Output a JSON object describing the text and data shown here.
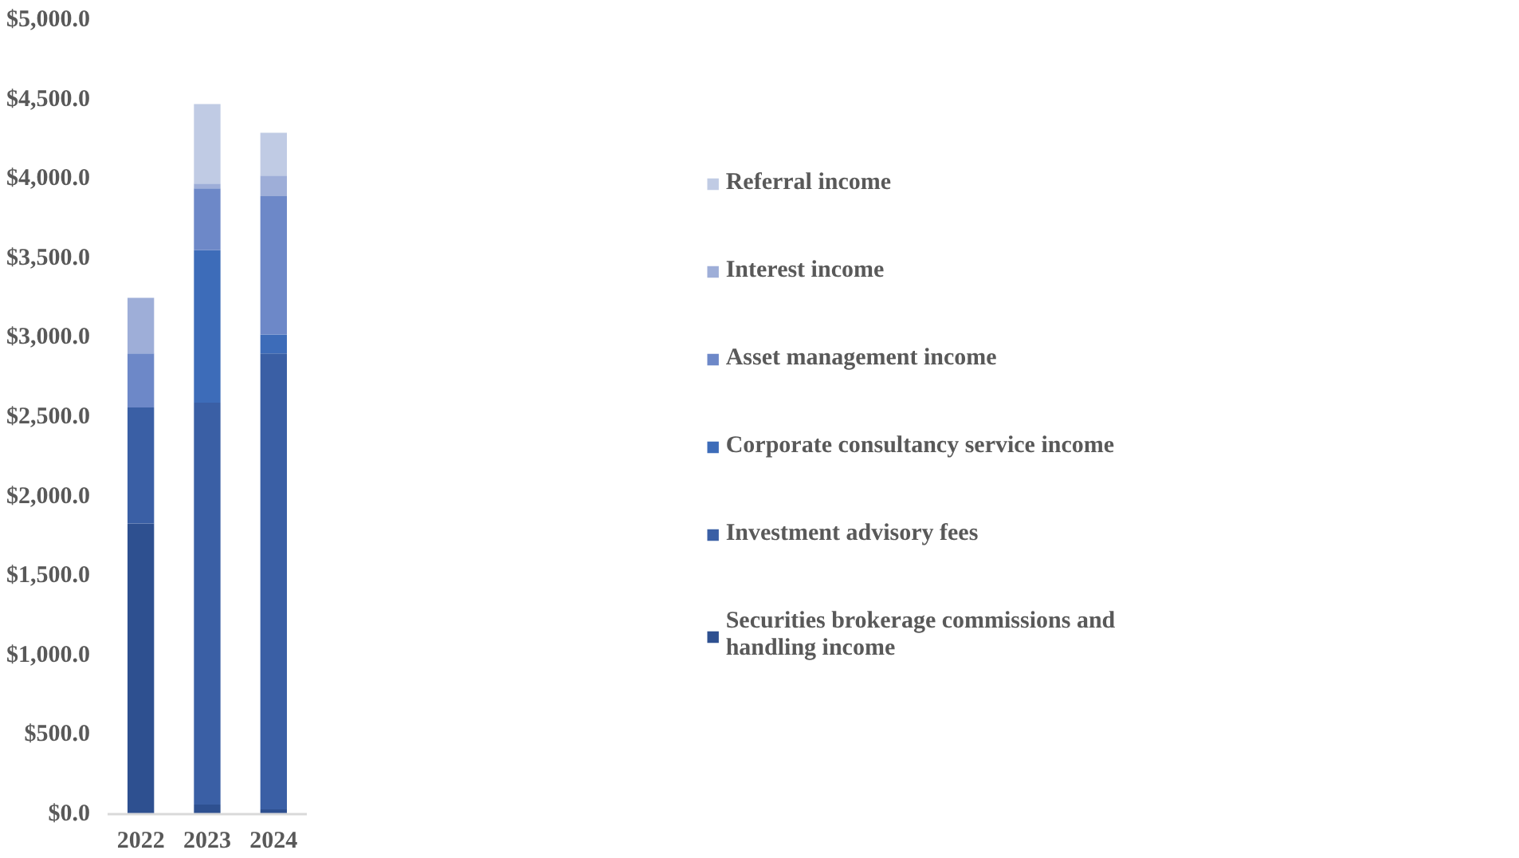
{
  "chart_data": {
    "type": "bar",
    "stacked": true,
    "categories": [
      "2022",
      "2023",
      "2024"
    ],
    "series": [
      {
        "name": "Securities brokerage commissions and handling income",
        "color": "#2e5090",
        "values": [
          1830,
          60,
          30
        ]
      },
      {
        "name": "Investment advisory fees",
        "color": "#3a5fa5",
        "values": [
          730,
          2530,
          2870
        ]
      },
      {
        "name": "Corporate consultancy service income",
        "color": "#3d6cb9",
        "values": [
          0,
          960,
          120
        ]
      },
      {
        "name": "Asset management income",
        "color": "#6d88c8",
        "values": [
          340,
          390,
          870
        ]
      },
      {
        "name": "Interest income",
        "color": "#9eaed8",
        "values": [
          350,
          30,
          130
        ]
      },
      {
        "name": "Referral income",
        "color": "#c0cbe4",
        "values": [
          0,
          500,
          270
        ]
      }
    ],
    "ylim": [
      0,
      5000
    ],
    "yticks": [
      {
        "value": 0,
        "label": "$0.0"
      },
      {
        "value": 500,
        "label": "$500.0"
      },
      {
        "value": 1000,
        "label": "$1,000.0"
      },
      {
        "value": 1500,
        "label": "$1,500.0"
      },
      {
        "value": 2000,
        "label": "$2,000.0"
      },
      {
        "value": 2500,
        "label": "$2,500.0"
      },
      {
        "value": 3000,
        "label": "$3,000.0"
      },
      {
        "value": 3500,
        "label": "$3,500.0"
      },
      {
        "value": 4000,
        "label": "$4,000.0"
      },
      {
        "value": 4500,
        "label": "$4,500.0"
      },
      {
        "value": 5000,
        "label": "$5,000.0"
      }
    ],
    "grid": false,
    "legend": "right"
  }
}
